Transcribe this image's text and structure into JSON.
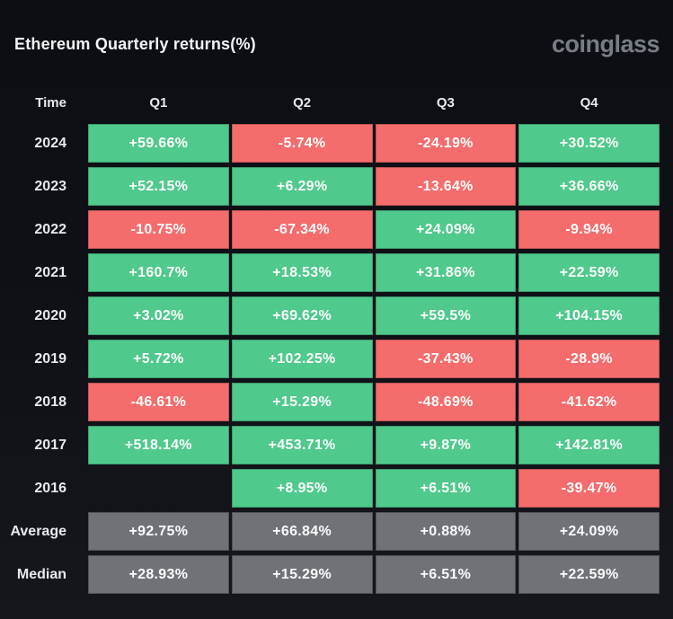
{
  "header": {
    "title": "Ethereum Quarterly returns(%)",
    "brand": "coinglass"
  },
  "table": {
    "columns": [
      "Time",
      "Q1",
      "Q2",
      "Q3",
      "Q4"
    ],
    "rows": [
      {
        "label": "2024",
        "cells": [
          {
            "text": "+59.66%",
            "type": "positive"
          },
          {
            "text": "-5.74%",
            "type": "negative"
          },
          {
            "text": "-24.19%",
            "type": "negative"
          },
          {
            "text": "+30.52%",
            "type": "positive"
          }
        ]
      },
      {
        "label": "2023",
        "cells": [
          {
            "text": "+52.15%",
            "type": "positive"
          },
          {
            "text": "+6.29%",
            "type": "positive"
          },
          {
            "text": "-13.64%",
            "type": "negative"
          },
          {
            "text": "+36.66%",
            "type": "positive"
          }
        ]
      },
      {
        "label": "2022",
        "cells": [
          {
            "text": "-10.75%",
            "type": "negative"
          },
          {
            "text": "-67.34%",
            "type": "negative"
          },
          {
            "text": "+24.09%",
            "type": "positive"
          },
          {
            "text": "-9.94%",
            "type": "negative"
          }
        ]
      },
      {
        "label": "2021",
        "cells": [
          {
            "text": "+160.7%",
            "type": "positive"
          },
          {
            "text": "+18.53%",
            "type": "positive"
          },
          {
            "text": "+31.86%",
            "type": "positive"
          },
          {
            "text": "+22.59%",
            "type": "positive"
          }
        ]
      },
      {
        "label": "2020",
        "cells": [
          {
            "text": "+3.02%",
            "type": "positive"
          },
          {
            "text": "+69.62%",
            "type": "positive"
          },
          {
            "text": "+59.5%",
            "type": "positive"
          },
          {
            "text": "+104.15%",
            "type": "positive"
          }
        ]
      },
      {
        "label": "2019",
        "cells": [
          {
            "text": "+5.72%",
            "type": "positive"
          },
          {
            "text": "+102.25%",
            "type": "positive"
          },
          {
            "text": "-37.43%",
            "type": "negative"
          },
          {
            "text": "-28.9%",
            "type": "negative"
          }
        ]
      },
      {
        "label": "2018",
        "cells": [
          {
            "text": "-46.61%",
            "type": "negative"
          },
          {
            "text": "+15.29%",
            "type": "positive"
          },
          {
            "text": "-48.69%",
            "type": "negative"
          },
          {
            "text": "-41.62%",
            "type": "negative"
          }
        ]
      },
      {
        "label": "2017",
        "cells": [
          {
            "text": "+518.14%",
            "type": "positive"
          },
          {
            "text": "+453.71%",
            "type": "positive"
          },
          {
            "text": "+9.87%",
            "type": "positive"
          },
          {
            "text": "+142.81%",
            "type": "positive"
          }
        ]
      },
      {
        "label": "2016",
        "cells": [
          {
            "text": "",
            "type": "empty"
          },
          {
            "text": "+8.95%",
            "type": "positive"
          },
          {
            "text": "+6.51%",
            "type": "positive"
          },
          {
            "text": "-39.47%",
            "type": "negative"
          }
        ]
      },
      {
        "label": "Average",
        "cells": [
          {
            "text": "+92.75%",
            "type": "neutral"
          },
          {
            "text": "+66.84%",
            "type": "neutral"
          },
          {
            "text": "+0.88%",
            "type": "neutral"
          },
          {
            "text": "+24.09%",
            "type": "neutral"
          }
        ]
      },
      {
        "label": "Median",
        "cells": [
          {
            "text": "+28.93%",
            "type": "neutral"
          },
          {
            "text": "+15.29%",
            "type": "neutral"
          },
          {
            "text": "+6.51%",
            "type": "neutral"
          },
          {
            "text": "+22.59%",
            "type": "neutral"
          }
        ]
      }
    ]
  },
  "colors": {
    "positive": "#4fc98c",
    "negative": "#f56c6c",
    "neutral": "#6f7277",
    "background": "#0f1117",
    "cell_text": "#fbfcfd",
    "label_text": "#e8eaee",
    "brand_text": "#787d85"
  },
  "chart_data": {
    "type": "heatmap",
    "title": "Ethereum Quarterly returns(%)",
    "x_categories": [
      "Q1",
      "Q2",
      "Q3",
      "Q4"
    ],
    "y_categories": [
      "2024",
      "2023",
      "2022",
      "2021",
      "2020",
      "2019",
      "2018",
      "2017",
      "2016",
      "Average",
      "Median"
    ],
    "values_pct": [
      [
        59.66,
        -5.74,
        -24.19,
        30.52
      ],
      [
        52.15,
        6.29,
        -13.64,
        36.66
      ],
      [
        -10.75,
        -67.34,
        24.09,
        -9.94
      ],
      [
        160.7,
        18.53,
        31.86,
        22.59
      ],
      [
        3.02,
        69.62,
        59.5,
        104.15
      ],
      [
        5.72,
        102.25,
        -37.43,
        -28.9
      ],
      [
        -46.61,
        15.29,
        -48.69,
        -41.62
      ],
      [
        518.14,
        453.71,
        9.87,
        142.81
      ],
      [
        null,
        8.95,
        6.51,
        -39.47
      ],
      [
        92.75,
        66.84,
        0.88,
        24.09
      ],
      [
        28.93,
        15.29,
        6.51,
        22.59
      ]
    ],
    "color_rule": "green for positive returns, red for negative returns, gray for Average and Median summary rows, blank for missing 2016 Q1",
    "legend": "none",
    "grid": "off"
  }
}
